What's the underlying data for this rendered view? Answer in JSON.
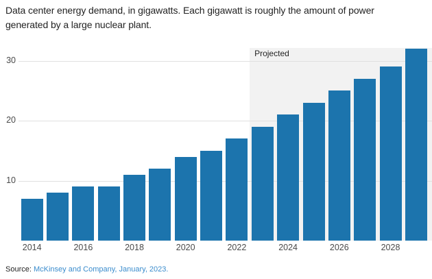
{
  "chart_data": {
    "type": "bar",
    "title": "Data center energy demand, in gigawatts. Each gigawatt is roughly the amount of power generated by a large nuclear plant.",
    "categories": [
      "2014",
      "2015",
      "2016",
      "2017",
      "2018",
      "2019",
      "2020",
      "2021",
      "2022",
      "2023",
      "2024",
      "2025",
      "2026",
      "2027",
      "2028",
      "2029"
    ],
    "values": [
      7,
      8,
      9,
      9,
      11,
      12,
      14,
      15,
      17,
      19,
      21,
      23,
      25,
      27,
      29,
      32
    ],
    "unit": "gigawatts",
    "xlabel": "",
    "ylabel": "",
    "ylim": [
      0,
      32
    ],
    "yticks": [
      10,
      20,
      30
    ],
    "xtick_labels": [
      "2014",
      "2016",
      "2018",
      "2020",
      "2022",
      "2024",
      "2026",
      "2028"
    ],
    "grid": "horizontal",
    "legend_position": "none",
    "projected": {
      "label": "Projected",
      "start_category": "2023",
      "end_category": "2029"
    },
    "colors": {
      "bar": "#1c74ad",
      "projected_background": "#f2f2f2",
      "gridline": "#e0e0e0",
      "axis_text": "#4a4a4a",
      "title_text": "#222222"
    }
  },
  "source": {
    "prefix": "Source:",
    "link_text": "McKinsey and Company, January, 2023.",
    "link_color": "#3a8ccd"
  }
}
